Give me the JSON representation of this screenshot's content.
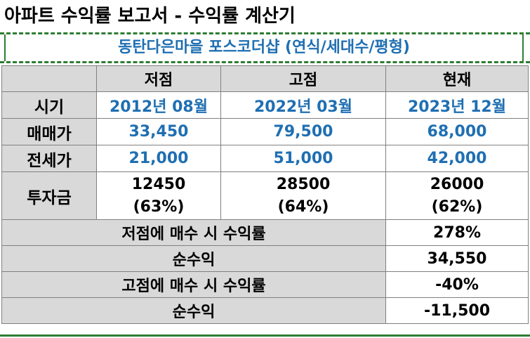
{
  "title": "아파트 수익률 보고서 - 수익률 계산기",
  "subtitle": "동탄다은마을 포스코더샵 (연식/세대수/평형)",
  "columns": [
    "저점",
    "고점",
    "현재"
  ],
  "rows": {
    "period": {
      "label": "시기",
      "values": [
        "2012년 08월",
        "2022년 03월",
        "2023년 12월"
      ]
    },
    "sale": {
      "label": "매매가",
      "values": [
        "33,450",
        "79,500",
        "68,000"
      ]
    },
    "jeonse": {
      "label": "전세가",
      "values": [
        "21,000",
        "51,000",
        "42,000"
      ]
    },
    "investment": {
      "label": "투자금",
      "amounts": [
        "12450",
        "28500",
        "26000"
      ],
      "ratios": [
        "(63%)",
        "(64%)",
        "(62%)"
      ]
    }
  },
  "summary": [
    {
      "label": "저점에 매수 시 수익률",
      "value": "278%"
    },
    {
      "label": "순수익",
      "value": "34,550"
    },
    {
      "label": "고점에 매수 시 수익률",
      "value": "-40%"
    },
    {
      "label": "순수익",
      "value": "-11,500"
    }
  ],
  "colors": {
    "accent_blue": "#1f6fb2",
    "header_gray": "#d9d9d9",
    "dash_green": "#2e7d32"
  }
}
